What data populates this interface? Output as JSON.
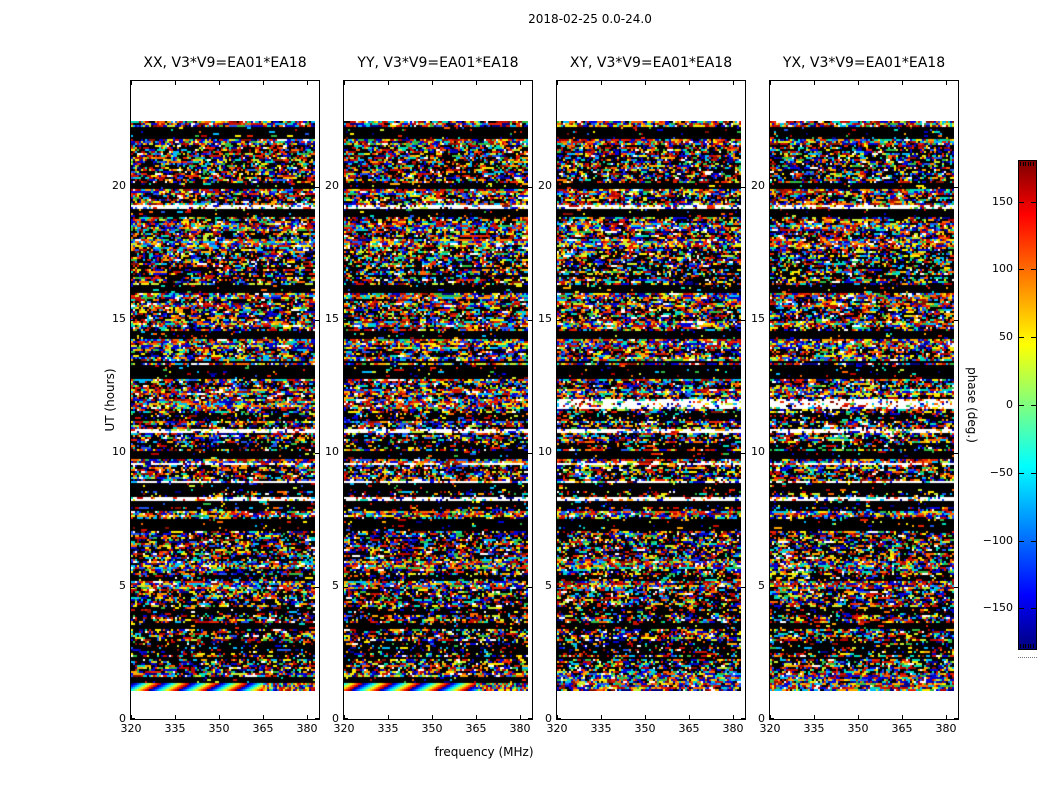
{
  "chart_data": {
    "type": "heatmap",
    "title": "2018-02-25 0.0-24.0",
    "xlabel": "frequency (MHz)",
    "ylabel": "UT (hours)",
    "x_ticks": [
      320,
      335,
      350,
      365,
      380
    ],
    "y_ticks": [
      0,
      5,
      10,
      15,
      20
    ],
    "x_range_mhz": [
      320,
      384
    ],
    "y_range_hours": [
      0,
      24
    ],
    "grid": false,
    "panels": [
      {
        "title": "XX, V3*V9=EA01*EA18",
        "polarization": "XX",
        "baseline": "V3*V9=EA01*EA18",
        "phase_ramp_band_at_bottom": true
      },
      {
        "title": "YY, V3*V9=EA01*EA18",
        "polarization": "YY",
        "baseline": "V3*V9=EA01*EA18",
        "phase_ramp_band_at_bottom": true
      },
      {
        "title": "XY, V3*V9=EA01*EA18",
        "polarization": "XY",
        "baseline": "V3*V9=EA01*EA18",
        "phase_ramp_band_at_bottom": false
      },
      {
        "title": "YX, V3*V9=EA01*EA18",
        "polarization": "YX",
        "baseline": "V3*V9=EA01*EA18",
        "phase_ramp_band_at_bottom": false
      }
    ],
    "data_extent_hours": [
      1.1,
      22.5
    ],
    "colorbar": {
      "label": "phase (deg.)",
      "ticks": [
        150,
        100,
        50,
        0,
        -50,
        -100,
        -150
      ],
      "range": [
        -180,
        180
      ],
      "colormap": "jet"
    }
  },
  "colors": {
    "background": "#ffffff",
    "axes": "#000000",
    "text": "#000000",
    "jet_stops": [
      "#00007f",
      "#0000ff",
      "#00ffff",
      "#7fff7f",
      "#ffff00",
      "#ff0000",
      "#7f0000"
    ]
  }
}
